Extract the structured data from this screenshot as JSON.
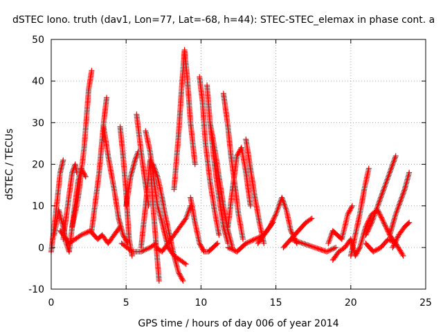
{
  "chart_data": {
    "type": "scatter",
    "title": "dSTEC Iono. truth (dav1, Lon=77, Lat=-68, h=44): STEC-STEC_elemax in phase cont. a",
    "xlabel": "GPS time / hours of day 006 of year 2014",
    "ylabel": "dSTEC  / TECUs",
    "xlim": [
      0,
      25
    ],
    "ylim": [
      -10,
      50
    ],
    "xticks": [
      0,
      5,
      10,
      15,
      20,
      25
    ],
    "yticks": [
      -10,
      0,
      10,
      20,
      30,
      40,
      50
    ],
    "xtick_labels": [
      "0",
      "5",
      "10",
      "15",
      "20",
      "25"
    ],
    "ytick_labels": [
      "-10",
      "0",
      "10",
      "20",
      "30",
      "40",
      "50"
    ],
    "grid": true,
    "marker": "+",
    "color": "#ff0000",
    "series": [
      {
        "x": [
          0.0,
          0.3,
          0.6,
          0.8
        ],
        "y": [
          -1,
          8,
          18,
          21
        ]
      },
      {
        "x": [
          0.2,
          0.5,
          0.8,
          1.0,
          1.2
        ],
        "y": [
          3,
          9,
          5,
          1,
          -1
        ]
      },
      {
        "x": [
          0.8,
          1.1,
          1.4,
          1.6,
          1.7
        ],
        "y": [
          2,
          10,
          18,
          20,
          18
        ]
      },
      {
        "x": [
          1.2,
          1.5,
          1.8,
          2.0,
          2.3
        ],
        "y": [
          -1,
          8,
          16,
          19,
          17
        ]
      },
      {
        "x": [
          1.4,
          1.8,
          2.2,
          2.5,
          2.7
        ],
        "y": [
          5,
          12,
          24,
          38,
          42.5
        ]
      },
      {
        "x": [
          2.7,
          3.2,
          3.5,
          3.7
        ],
        "y": [
          4,
          18,
          30,
          36
        ]
      },
      {
        "x": [
          0.6,
          1.2,
          2.0,
          2.6,
          3.1,
          3.4,
          3.8,
          4.2,
          4.6
        ],
        "y": [
          4,
          1,
          3,
          4,
          2,
          3,
          1,
          3,
          5
        ]
      },
      {
        "x": [
          3.5,
          3.8,
          4.2,
          4.5,
          4.8,
          5.1
        ],
        "y": [
          29,
          22,
          14,
          7,
          3,
          1
        ]
      },
      {
        "x": [
          4.6,
          4.8,
          5.0,
          5.2,
          5.4
        ],
        "y": [
          29,
          22,
          13,
          2,
          -2
        ]
      },
      {
        "x": [
          5.0,
          5.3,
          5.6,
          5.8
        ],
        "y": [
          10,
          17,
          21,
          23
        ]
      },
      {
        "x": [
          4.7,
          5.4,
          6.0,
          6.6,
          7.0
        ],
        "y": [
          1,
          -1,
          -1,
          0,
          1
        ]
      },
      {
        "x": [
          5.7,
          6.0,
          6.3,
          6.5
        ],
        "y": [
          32,
          23,
          15,
          10
        ]
      },
      {
        "x": [
          6.0,
          6.3,
          6.6,
          6.8,
          7.0,
          7.2
        ],
        "y": [
          0,
          10,
          21,
          10,
          1,
          -8
        ]
      },
      {
        "x": [
          6.3,
          6.6,
          6.9,
          7.1,
          7.4,
          7.8,
          8.2,
          8.6,
          9.0
        ],
        "y": [
          28,
          23,
          15,
          10,
          6,
          0,
          -2,
          -3,
          -4
        ]
      },
      {
        "x": [
          6.8,
          7.1,
          7.4,
          7.6,
          7.9,
          8.2,
          8.5,
          8.8
        ],
        "y": [
          20,
          17,
          12,
          8,
          3,
          -2,
          -6,
          -8
        ]
      },
      {
        "x": [
          7.0,
          7.4,
          7.8,
          8.2,
          8.6,
          9.0,
          9.3
        ],
        "y": [
          0,
          -1,
          1,
          3,
          5,
          7,
          10
        ]
      },
      {
        "x": [
          8.2,
          8.5,
          8.7,
          8.9,
          9.1,
          9.3,
          9.6
        ],
        "y": [
          14,
          27,
          38,
          47.5,
          40,
          30,
          20
        ]
      },
      {
        "x": [
          9.3,
          9.6,
          9.9,
          10.2,
          10.5,
          10.8,
          11.1
        ],
        "y": [
          12,
          6,
          1,
          -1,
          -1,
          0,
          1
        ]
      },
      {
        "x": [
          9.9,
          10.1,
          10.3,
          10.6,
          10.9,
          11.2
        ],
        "y": [
          41,
          35,
          25,
          16,
          9,
          3
        ]
      },
      {
        "x": [
          10.4,
          10.6,
          10.9,
          11.2,
          11.5,
          11.8
        ],
        "y": [
          39,
          30,
          20,
          12,
          5,
          1
        ]
      },
      {
        "x": [
          10.6,
          10.9,
          11.2,
          11.5,
          11.8,
          12.1
        ],
        "y": [
          30,
          24,
          17,
          10,
          4,
          0
        ]
      },
      {
        "x": [
          11.5,
          11.8,
          12.0,
          12.3,
          12.5,
          12.8
        ],
        "y": [
          37,
          29,
          22,
          14,
          8,
          2
        ]
      },
      {
        "x": [
          11.8,
          12.1,
          12.4,
          12.7,
          13.0,
          13.3
        ],
        "y": [
          5,
          14,
          22,
          24,
          18,
          10
        ]
      },
      {
        "x": [
          13.0,
          13.3,
          13.6,
          13.9,
          14.2
        ],
        "y": [
          26,
          19,
          12,
          6,
          1
        ]
      },
      {
        "x": [
          11.8,
          12.4,
          13.0,
          13.6,
          14.2,
          14.8
        ],
        "y": [
          0,
          -1,
          1,
          2,
          3,
          6
        ]
      },
      {
        "x": [
          13.8,
          14.2,
          14.6,
          15.0,
          15.4,
          15.7,
          16.0,
          16.4
        ],
        "y": [
          1,
          3,
          5,
          8,
          12,
          9,
          4,
          1
        ]
      },
      {
        "x": [
          15.5,
          16.0,
          16.5,
          17.0,
          17.4
        ],
        "y": [
          0,
          2,
          4,
          6,
          7
        ]
      },
      {
        "x": [
          16.0,
          16.8,
          17.6,
          18.4,
          19.0
        ],
        "y": [
          2,
          1,
          0,
          -1,
          0
        ]
      },
      {
        "x": [
          18.5,
          18.8,
          19.1,
          19.4,
          19.8,
          20.1
        ],
        "y": [
          1,
          4,
          3,
          2,
          8,
          10
        ]
      },
      {
        "x": [
          18.8,
          19.2,
          19.6,
          20.0,
          20.3,
          20.6
        ],
        "y": [
          -3,
          -1,
          0,
          2,
          -2,
          0
        ]
      },
      {
        "x": [
          20.0,
          20.3,
          20.6,
          20.9,
          21.2
        ],
        "y": [
          -2,
          3,
          8,
          14,
          19
        ]
      },
      {
        "x": [
          20.6,
          21.0,
          21.4,
          21.8,
          22.2,
          22.6,
          23.0
        ],
        "y": [
          0,
          5,
          8,
          9,
          6,
          3,
          1
        ]
      },
      {
        "x": [
          21.0,
          21.4,
          21.8,
          22.2,
          22.6,
          23.0
        ],
        "y": [
          3,
          6,
          10,
          14,
          18,
          22
        ]
      },
      {
        "x": [
          21.0,
          21.5,
          22.0,
          22.5,
          23.0,
          23.5
        ],
        "y": [
          1,
          -1,
          0,
          2,
          1,
          -2
        ]
      },
      {
        "x": [
          22.6,
          23.0,
          23.3,
          23.6,
          23.9
        ],
        "y": [
          3,
          8,
          11,
          14,
          18
        ]
      },
      {
        "x": [
          22.8,
          23.2,
          23.6,
          23.9
        ],
        "y": [
          0,
          3,
          5,
          6
        ]
      }
    ]
  }
}
